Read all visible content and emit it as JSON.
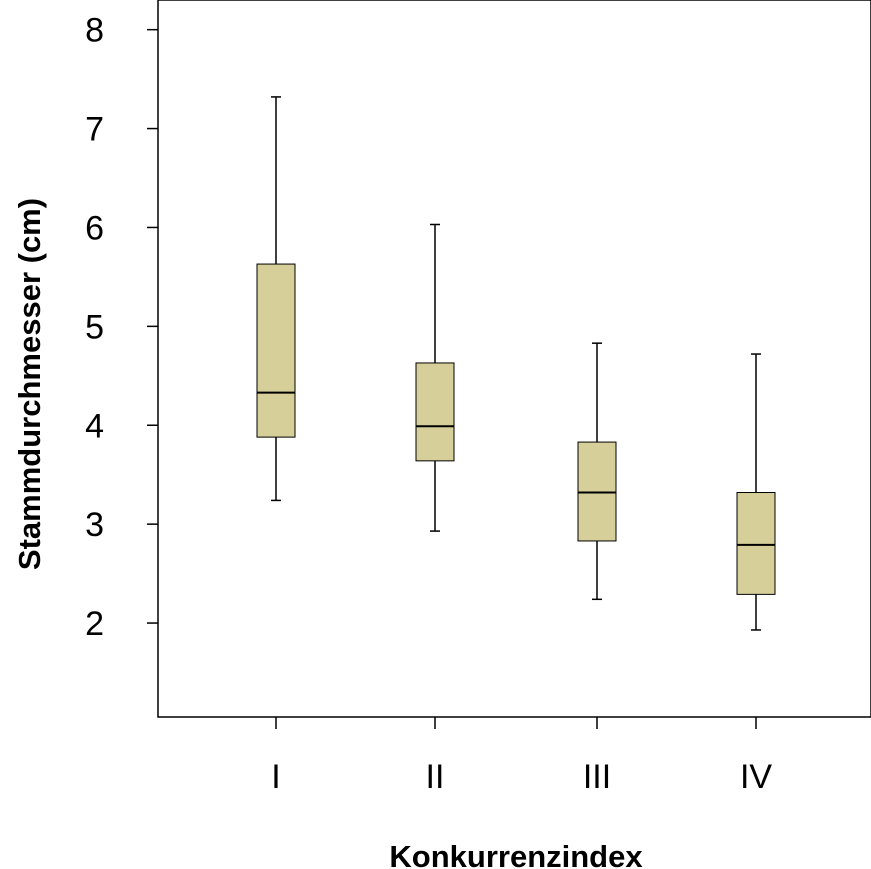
{
  "chart_data": {
    "type": "boxplot",
    "title": "",
    "xlabel": "Konkurrenzindex",
    "ylabel": "Stammdurchmesser (cm)",
    "ylim": [
      1.05,
      8.3
    ],
    "yticks": [
      2,
      3,
      4,
      5,
      6,
      7,
      8
    ],
    "categories": [
      "I",
      "II",
      "III",
      "IV"
    ],
    "boxes": [
      {
        "category": "I",
        "whisker_low": 3.24,
        "q1": 3.88,
        "median": 4.33,
        "q3": 5.63,
        "whisker_high": 7.32
      },
      {
        "category": "II",
        "whisker_low": 2.93,
        "q1": 3.64,
        "median": 3.99,
        "q3": 4.63,
        "whisker_high": 6.03
      },
      {
        "category": "III",
        "whisker_low": 2.24,
        "q1": 2.83,
        "median": 3.32,
        "q3": 3.83,
        "whisker_high": 4.83
      },
      {
        "category": "IV",
        "whisker_low": 1.93,
        "q1": 2.29,
        "median": 2.79,
        "q3": 3.32,
        "whisker_high": 4.72
      }
    ],
    "box_color": "#d6cf9a",
    "line_color": "#000000",
    "grid": false
  }
}
